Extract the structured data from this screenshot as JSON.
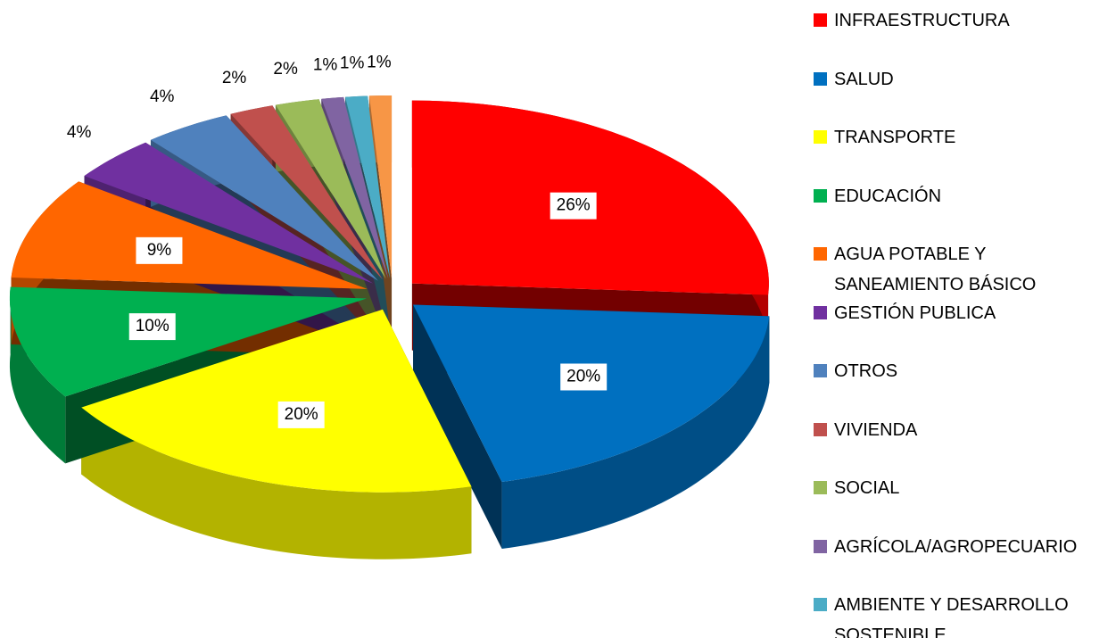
{
  "chart_data": {
    "type": "pie3d",
    "categories": [
      "INFRAESTRUCTURA",
      "SALUD",
      "TRANSPORTE",
      "EDUCACIÓN",
      "AGUA POTABLE Y SANEAMIENTO BÁSICO",
      "GESTIÓN PUBLICA",
      "OTROS",
      "VIVIENDA",
      "SOCIAL",
      "AGRÍCOLA/AGROPECUARIO",
      "AMBIENTE Y DESARROLLO SOSTENIBLE",
      null
    ],
    "values": [
      26,
      20,
      20,
      10,
      9,
      4,
      4,
      2,
      2,
      1,
      1,
      1
    ],
    "value_labels": [
      "26%",
      "20%",
      "20%",
      "10%",
      "9%",
      "4%",
      "4%",
      "2%",
      "2%",
      "1%",
      "1%",
      "1%"
    ],
    "colors": [
      "#ff0000",
      "#0070c0",
      "#ffff00",
      "#00b050",
      "#ff6600",
      "#7030a0",
      "#4f81bd",
      "#c0504d",
      "#9bbb59",
      "#8064a2",
      "#4bacc6",
      "#f79646"
    ],
    "legend": "right"
  }
}
